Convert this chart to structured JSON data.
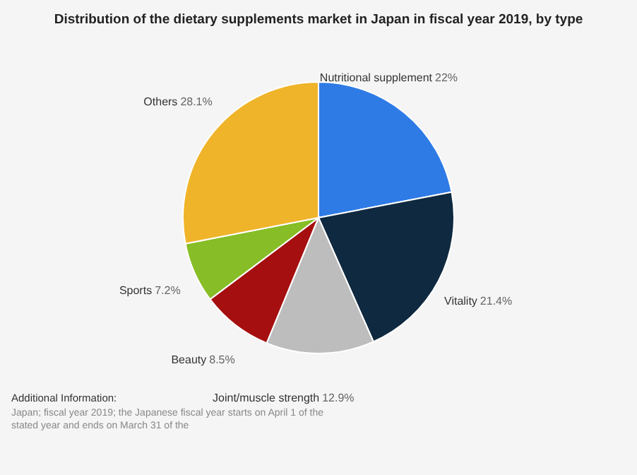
{
  "chart_data": {
    "type": "pie",
    "title": "Distribution of the dietary supplements market in Japan in fiscal year 2019, by type",
    "categories": [
      "Nutritional supplement",
      "Vitality",
      "Joint/muscle strength",
      "Beauty",
      "Sports",
      "Others"
    ],
    "values": [
      22,
      21.4,
      12.9,
      8.5,
      7.2,
      28.1
    ],
    "colors": [
      "#2f7be6",
      "#0f2940",
      "#bdbdbd",
      "#a50f0f",
      "#87bd26",
      "#f0b42a"
    ],
    "value_labels": [
      "22%",
      "21.4%",
      "12.9%",
      "8.5%",
      "7.2%",
      "28.1%"
    ],
    "legend": false,
    "annotations": [
      "Additional Information:",
      "Japan; fiscal year 2019; the Japanese fiscal year starts on April 1 of the stated year and ends on March 31 of the"
    ]
  }
}
